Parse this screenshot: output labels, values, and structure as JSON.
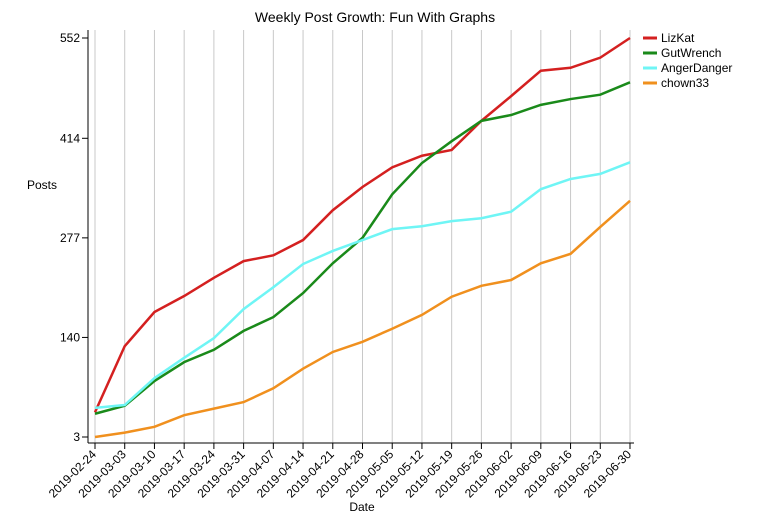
{
  "chart_data": {
    "type": "line",
    "title": "Weekly Post Growth: Fun With Graphs",
    "x_label": "Date",
    "y_label": "Posts",
    "categories": [
      "2019-02-24",
      "2019-03-03",
      "2019-03-10",
      "2019-03-17",
      "2019-03-24",
      "2019-03-31",
      "2019-04-07",
      "2019-04-14",
      "2019-04-21",
      "2019-04-28",
      "2019-05-05",
      "2019-05-12",
      "2019-05-19",
      "2019-05-26",
      "2019-06-02",
      "2019-06-09",
      "2019-06-16",
      "2019-06-23",
      "2019-06-30"
    ],
    "series": [
      {
        "name": "LizKat",
        "color": "#d42020",
        "values": [
          37,
          128,
          175,
          197,
          222,
          245,
          253,
          274,
          315,
          347,
          374,
          390,
          398,
          438,
          472,
          507,
          511,
          525,
          552
        ]
      },
      {
        "name": "GutWrench",
        "color": "#1a8a1a",
        "values": [
          35,
          46,
          80,
          106,
          123,
          149,
          168,
          201,
          242,
          277,
          337,
          380,
          410,
          438,
          446,
          460,
          468,
          474,
          491
        ]
      },
      {
        "name": "AngerDanger",
        "color": "#6ff5f5",
        "values": [
          43,
          47,
          84,
          112,
          139,
          179,
          209,
          241,
          259,
          274,
          289,
          293,
          300,
          304,
          313,
          344,
          358,
          365,
          381
        ]
      },
      {
        "name": "chown33",
        "color": "#f0901e",
        "values": [
          3,
          9,
          17,
          33,
          42,
          51,
          70,
          97,
          120,
          134,
          152,
          171,
          196,
          211,
          219,
          242,
          255,
          292,
          328
        ]
      }
    ],
    "ylim": [
      3,
      552
    ],
    "yticks": [
      3,
      140,
      277,
      414,
      552
    ],
    "grid": true,
    "legend": "top-right"
  }
}
